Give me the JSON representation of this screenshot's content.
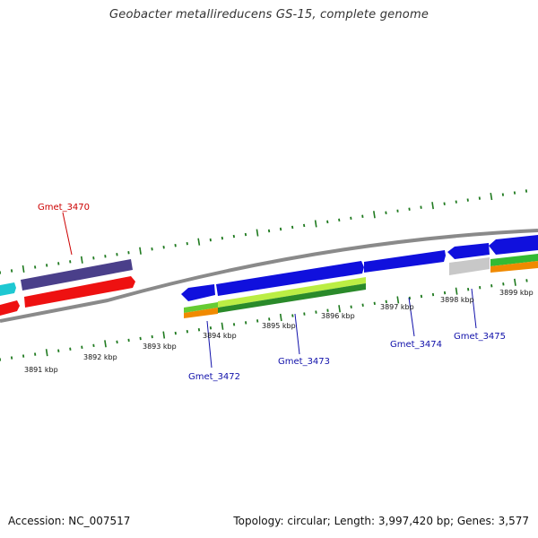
{
  "title": "Geobacter metallireducens GS-15, complete genome",
  "footer": {
    "accession": "Accession: NC_007517",
    "summary": "Topology: circular; Length: 3,997,420 bp; Genes: 3,577"
  },
  "colors": {
    "backbone": "#8a8a8a",
    "tick": "#1f7a1f",
    "label_red": "#cc0000",
    "label_blue": "#1010aa"
  },
  "gene_labels": [
    {
      "id": "Gmet_3470",
      "text": "Gmet_3470"
    },
    {
      "id": "Gmet_3472",
      "text": "Gmet_3472"
    },
    {
      "id": "Gmet_3473",
      "text": "Gmet_3473"
    },
    {
      "id": "Gmet_3474",
      "text": "Gmet_3474"
    },
    {
      "id": "Gmet_3475",
      "text": "Gmet_3475"
    }
  ],
  "kbp_labels": [
    "3891 kbp",
    "3892 kbp",
    "3893 kbp",
    "3894 kbp",
    "3895 kbp",
    "3896 kbp",
    "3897 kbp",
    "3898 kbp",
    "3899 kbp"
  ]
}
